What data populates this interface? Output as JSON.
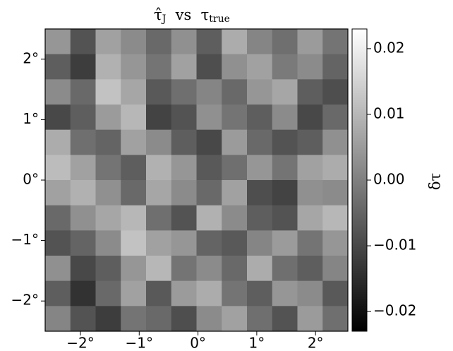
{
  "chart_data": {
    "type": "heatmap",
    "title": [
      "τ̂",
      "J",
      "  vs  ",
      "τ",
      "true"
    ],
    "colorbar_label": "δτ",
    "xlim": [
      -2.6,
      2.55
    ],
    "ylim": [
      -2.5,
      2.5
    ],
    "clim": [
      -0.023,
      0.023
    ],
    "xticks": [
      {
        "value": -2,
        "label": "−2°"
      },
      {
        "value": -1,
        "label": "−1°"
      },
      {
        "value": 0,
        "label": "0°"
      },
      {
        "value": 1,
        "label": "1°"
      },
      {
        "value": 2,
        "label": "2°"
      }
    ],
    "yticks": [
      {
        "value": -2,
        "label": "−2°"
      },
      {
        "value": -1,
        "label": "−1°"
      },
      {
        "value": 0,
        "label": "0°"
      },
      {
        "value": 1,
        "label": "1°"
      },
      {
        "value": 2,
        "label": "2°"
      }
    ],
    "cticks": [
      {
        "value": -0.02,
        "label": "−0.02"
      },
      {
        "value": -0.01,
        "label": "−0.01"
      },
      {
        "value": 0,
        "label": "0.00"
      },
      0.01,
      0.02
    ],
    "colormap": "gray",
    "z": [
      [
        0.004,
        -0.008,
        0.006,
        0.002,
        -0.004,
        0.003,
        -0.006,
        0.008,
        0.001,
        -0.003,
        0.005,
        -0.002
      ],
      [
        -0.006,
        -0.012,
        0.009,
        0.004,
        -0.002,
        0.006,
        -0.009,
        0.003,
        0.006,
        -0.001,
        0.002,
        -0.005
      ],
      [
        0.002,
        -0.004,
        0.012,
        0.007,
        -0.007,
        -0.003,
        0.001,
        -0.004,
        0.004,
        0.007,
        -0.006,
        -0.009
      ],
      [
        -0.01,
        -0.006,
        0.005,
        0.01,
        -0.011,
        -0.008,
        0.003,
        -0.002,
        -0.006,
        0.002,
        -0.01,
        -0.004
      ],
      [
        0.008,
        -0.003,
        -0.005,
        0.006,
        0.002,
        -0.006,
        -0.01,
        0.005,
        -0.004,
        -0.008,
        -0.006,
        0.003
      ],
      [
        0.011,
        0.006,
        -0.002,
        -0.006,
        0.009,
        0.004,
        -0.007,
        -0.003,
        0.004,
        -0.002,
        0.006,
        0.008
      ],
      [
        0.006,
        0.009,
        0.003,
        -0.004,
        0.007,
        0.002,
        -0.004,
        0.006,
        -0.009,
        -0.011,
        0.003,
        0.002
      ],
      [
        -0.004,
        0.003,
        0.007,
        0.01,
        -0.003,
        -0.008,
        0.009,
        0.002,
        -0.006,
        -0.008,
        0.007,
        0.01
      ],
      [
        -0.008,
        -0.005,
        0.002,
        0.012,
        0.006,
        0.004,
        -0.005,
        -0.007,
        0.001,
        0.005,
        -0.002,
        0.004
      ],
      [
        0.003,
        -0.01,
        -0.006,
        0.004,
        0.01,
        -0.002,
        0.002,
        -0.004,
        0.008,
        -0.003,
        -0.006,
        0.001
      ],
      [
        -0.006,
        -0.014,
        -0.004,
        0.006,
        -0.007,
        0.005,
        0.008,
        -0.002,
        -0.006,
        0.004,
        0.002,
        -0.007
      ],
      [
        0.001,
        -0.008,
        -0.012,
        -0.002,
        -0.004,
        -0.009,
        0.002,
        0.006,
        -0.003,
        -0.008,
        0.005,
        -0.003
      ]
    ]
  }
}
